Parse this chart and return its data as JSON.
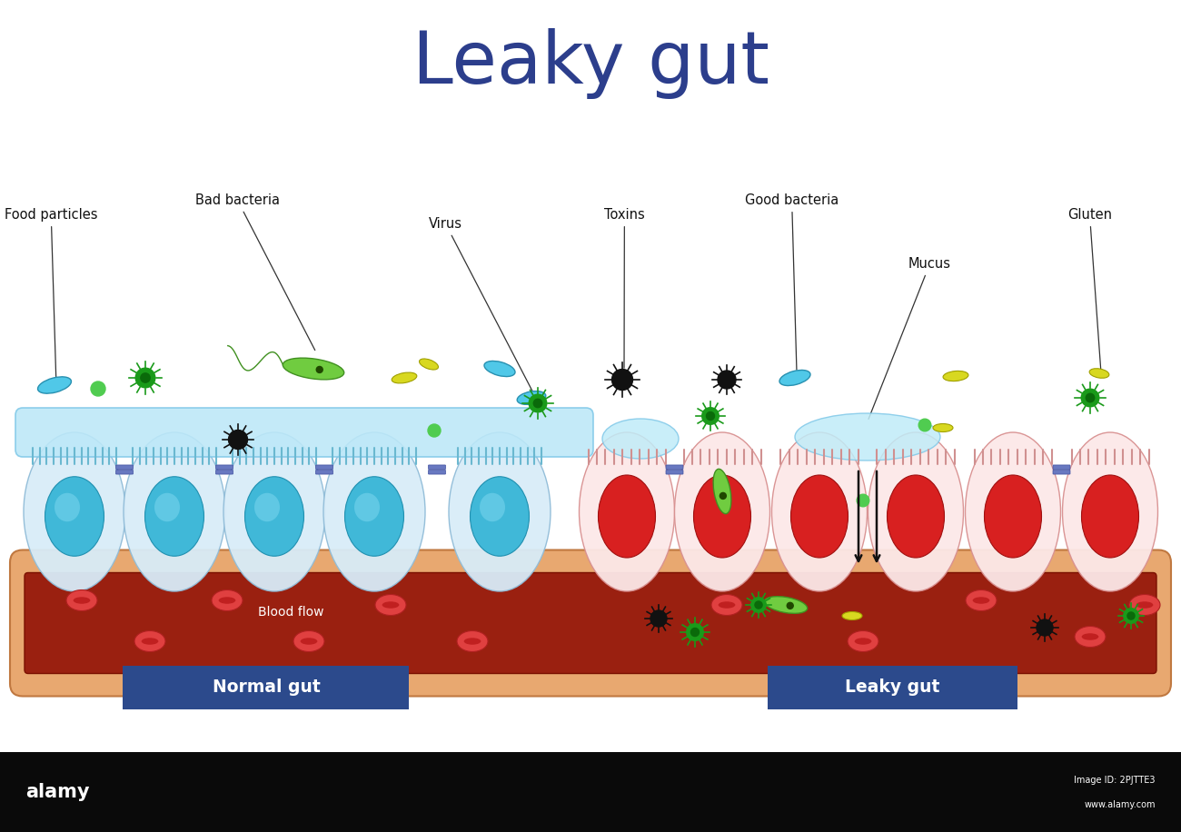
{
  "title": "Leaky gut",
  "title_color": "#2c3e8c",
  "title_fontsize": 58,
  "bg_color": "#ffffff",
  "normal_label": "Normal gut",
  "leaky_label": "Leaky gut",
  "label_bg": "#2c4a8c",
  "label_text_color": "#ffffff",
  "blood_flow_label": "Blood flow",
  "cell_color_normal": "#d8ecf8",
  "cell_edge_normal": "#90bcd8",
  "nucleus_color_normal": "#40b8d8",
  "nucleus_edge_normal": "#2090b0",
  "cell_color_leaky": "#fce8e8",
  "cell_edge_leaky": "#d89090",
  "nucleus_color_leaky": "#d82020",
  "nucleus_edge_leaky": "#a01010",
  "mucus_color_normal": "#a8ddf0",
  "mucus_color_leaky": "#b8e8f8",
  "blood_outer": "#e8a870",
  "blood_inner": "#9a2010",
  "rbc_color": "#e04040",
  "tj_color": "#6878c0",
  "ann_fontsize": 10.5
}
